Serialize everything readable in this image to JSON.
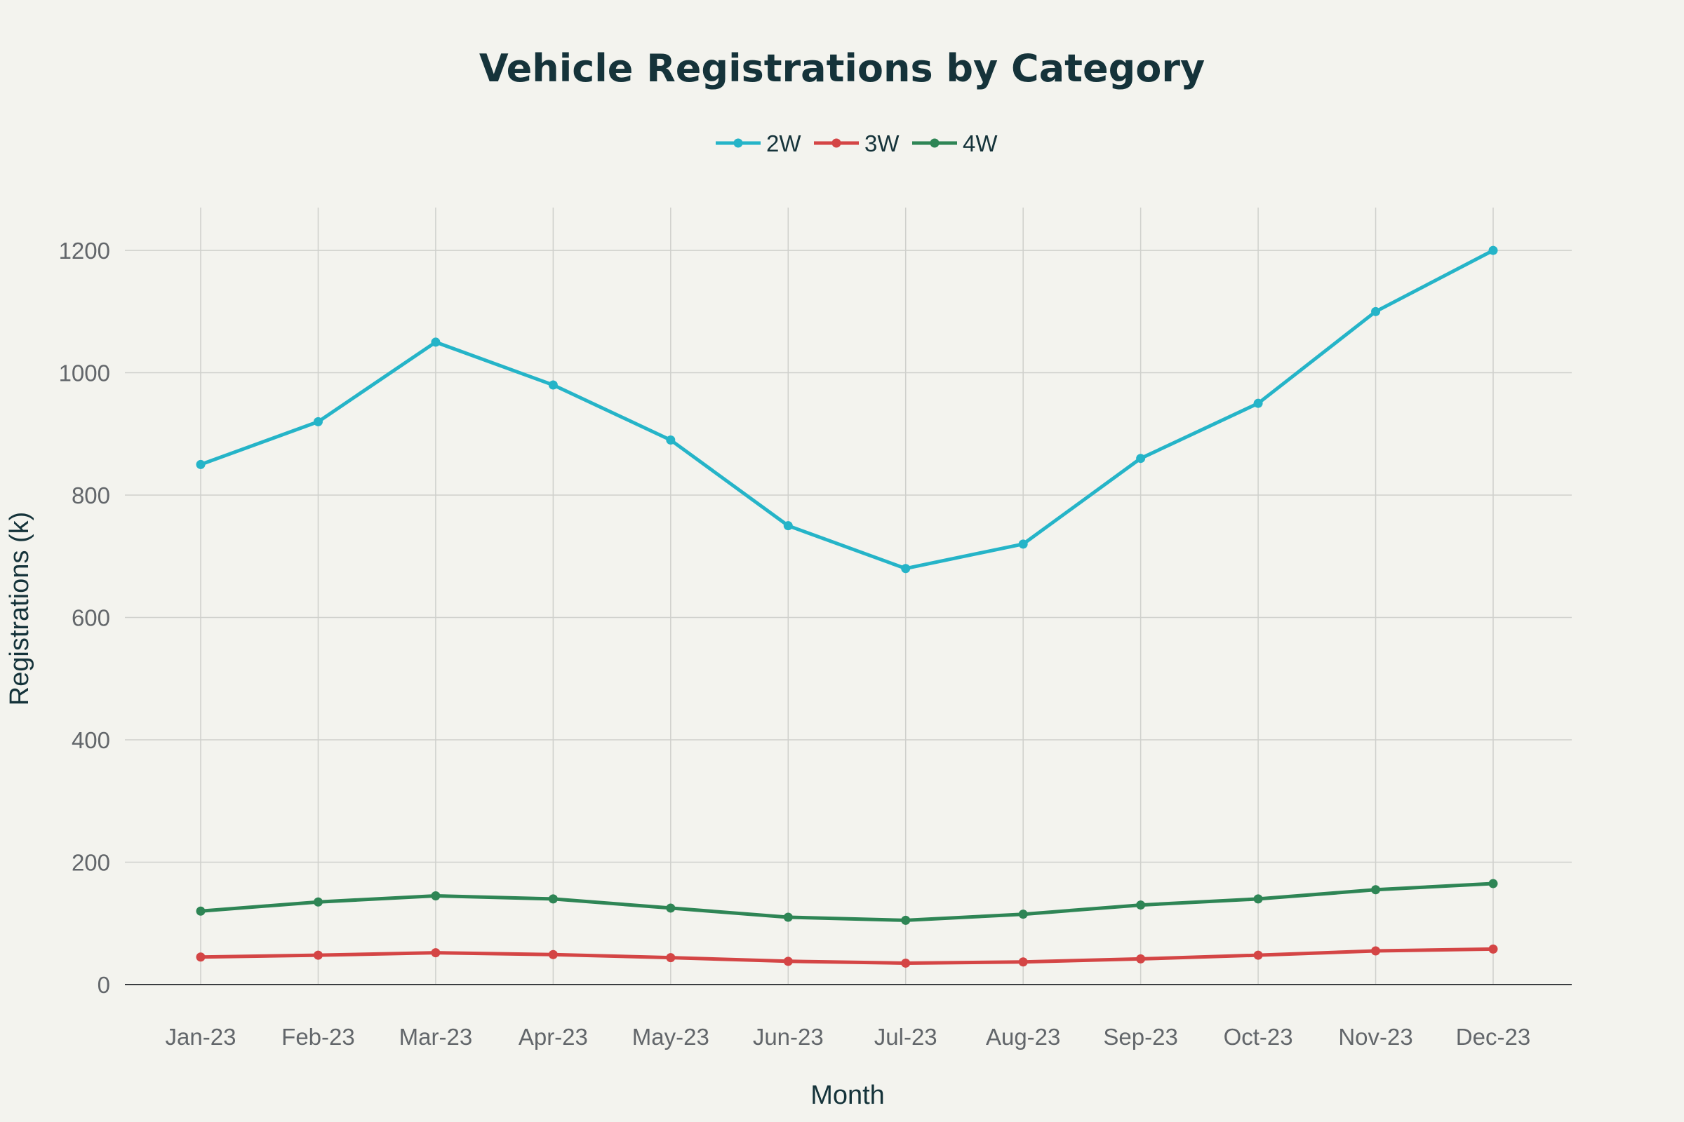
{
  "chart_data": {
    "type": "line",
    "title": "Vehicle Registrations by Category",
    "xlabel": "Month",
    "ylabel": "Registrations (k)",
    "categories": [
      "Jan-23",
      "Feb-23",
      "Mar-23",
      "Apr-23",
      "May-23",
      "Jun-23",
      "Jul-23",
      "Aug-23",
      "Sep-23",
      "Oct-23",
      "Nov-23",
      "Dec-23"
    ],
    "ylim": [
      0,
      1270
    ],
    "yticks": [
      0,
      200,
      400,
      600,
      800,
      1000,
      1200
    ],
    "grid": true,
    "legend_position": "top-center",
    "series": [
      {
        "name": "2W",
        "color": "#25b4c8",
        "values": [
          850,
          920,
          1050,
          980,
          890,
          750,
          680,
          720,
          860,
          950,
          1100,
          1200
        ]
      },
      {
        "name": "3W",
        "color": "#d44545",
        "values": [
          45,
          48,
          52,
          49,
          44,
          38,
          35,
          37,
          42,
          48,
          55,
          58
        ]
      },
      {
        "name": "4W",
        "color": "#2e8555",
        "values": [
          120,
          135,
          145,
          140,
          125,
          110,
          105,
          115,
          130,
          140,
          155,
          165
        ]
      }
    ]
  }
}
